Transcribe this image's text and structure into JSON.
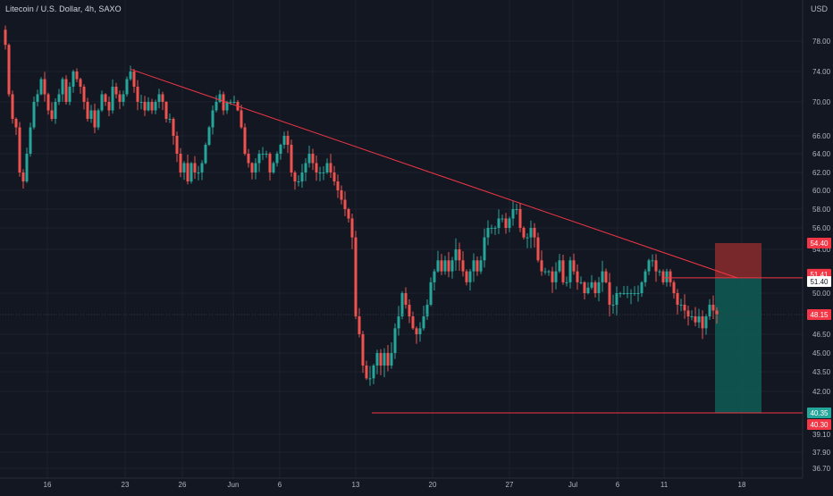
{
  "header": {
    "symbol_title": "Litecoin / U.S. Dollar, 4h, SAXO",
    "currency_label": "USD"
  },
  "colors": {
    "background": "#131722",
    "grid": "#1e222d",
    "up_candle": "#26a69a",
    "down_candle": "#ef5350",
    "trendline": "#f23645",
    "target_zone": "#0f5c55",
    "stop_zone": "#8b2a2c",
    "axis_text": "#b2b5be"
  },
  "chart_data": {
    "type": "candlestick",
    "ylim": [
      36.0,
      81.5
    ],
    "y_ticks": [
      "78.00",
      "74.00",
      "70.00",
      "66.00",
      "64.00",
      "62.00",
      "60.00",
      "58.00",
      "56.00",
      "54.00",
      "50.00",
      "46.50",
      "45.00",
      "43.50",
      "42.00",
      "39.10",
      "37.90",
      "36.70"
    ],
    "x_ticks": [
      "16",
      "23",
      "26",
      "Jun",
      "6",
      "13",
      "20",
      "27",
      "Jul",
      "6",
      "11",
      "18"
    ],
    "price_labels": [
      {
        "text": "54.40",
        "value": 54.4,
        "bg": "#f23645",
        "fg": "#ffffff"
      },
      {
        "text": "51.41",
        "value": 51.41,
        "bg": "#f23645",
        "fg": "#ffffff"
      },
      {
        "text": "51.40",
        "value": 51.4,
        "bg": "#ffffff",
        "fg": "#131722"
      },
      {
        "text": "48.15",
        "value": 48.15,
        "bg": "#f23645",
        "fg": "#ffffff"
      },
      {
        "text": "40.35",
        "value": 40.35,
        "bg": "#26a69a",
        "fg": "#ffffff"
      },
      {
        "text": "40.30",
        "value": 40.3,
        "bg": "#f23645",
        "fg": "#ffffff"
      }
    ],
    "current_price": 48.15,
    "trendline": {
      "from": {
        "x_tick": "23",
        "price": 74.3
      },
      "to": {
        "x_tick": "18",
        "price": 51.4
      }
    },
    "short_position": {
      "entry": 51.4,
      "stop": 54.4,
      "target": 40.35
    },
    "support_line": 40.35,
    "resistance_line": 51.41,
    "price_path": [
      [
        0,
        79.5
      ],
      [
        4,
        77.5
      ],
      [
        8,
        71
      ],
      [
        12,
        68
      ],
      [
        16,
        67
      ],
      [
        20,
        62
      ],
      [
        24,
        61
      ],
      [
        28,
        64
      ],
      [
        32,
        67
      ],
      [
        36,
        70
      ],
      [
        40,
        71
      ],
      [
        44,
        73
      ],
      [
        48,
        71
      ],
      [
        52,
        69
      ],
      [
        56,
        68
      ],
      [
        60,
        70
      ],
      [
        64,
        71
      ],
      [
        68,
        73
      ],
      [
        72,
        70
      ],
      [
        76,
        72
      ],
      [
        80,
        74
      ],
      [
        84,
        73
      ],
      [
        88,
        72
      ],
      [
        92,
        70
      ],
      [
        96,
        68
      ],
      [
        100,
        69
      ],
      [
        104,
        67
      ],
      [
        108,
        69
      ],
      [
        112,
        71
      ],
      [
        116,
        70
      ],
      [
        120,
        69
      ],
      [
        124,
        72
      ],
      [
        128,
        71
      ],
      [
        132,
        70
      ],
      [
        136,
        71
      ],
      [
        140,
        73
      ],
      [
        144,
        74
      ],
      [
        148,
        72
      ],
      [
        152,
        70
      ],
      [
        156,
        70
      ],
      [
        160,
        69
      ],
      [
        164,
        70
      ],
      [
        168,
        69
      ],
      [
        172,
        70
      ],
      [
        176,
        71
      ],
      [
        180,
        70
      ],
      [
        184,
        68
      ],
      [
        188,
        68
      ],
      [
        192,
        66
      ],
      [
        196,
        64
      ],
      [
        200,
        62
      ],
      [
        204,
        63
      ],
      [
        208,
        61
      ],
      [
        212,
        63
      ],
      [
        216,
        62
      ],
      [
        220,
        62
      ],
      [
        224,
        63
      ],
      [
        228,
        65
      ],
      [
        232,
        67
      ],
      [
        236,
        69
      ],
      [
        240,
        70
      ],
      [
        244,
        71
      ],
      [
        248,
        69
      ],
      [
        252,
        70
      ],
      [
        256,
        70
      ],
      [
        260,
        70
      ],
      [
        264,
        69
      ],
      [
        268,
        67
      ],
      [
        272,
        64
      ],
      [
        276,
        63
      ],
      [
        280,
        62
      ],
      [
        284,
        63
      ],
      [
        288,
        64
      ],
      [
        292,
        64
      ],
      [
        296,
        64
      ],
      [
        300,
        62
      ],
      [
        304,
        63
      ],
      [
        308,
        64
      ],
      [
        312,
        65
      ],
      [
        316,
        66
      ],
      [
        320,
        65
      ],
      [
        324,
        62
      ],
      [
        328,
        61
      ],
      [
        332,
        61
      ],
      [
        336,
        62
      ],
      [
        340,
        63
      ],
      [
        344,
        64
      ],
      [
        348,
        63
      ],
      [
        352,
        62
      ],
      [
        356,
        62
      ],
      [
        360,
        62
      ],
      [
        364,
        63
      ],
      [
        368,
        62
      ],
      [
        372,
        61
      ],
      [
        376,
        60
      ],
      [
        380,
        59
      ],
      [
        384,
        58
      ],
      [
        388,
        57
      ],
      [
        392,
        55
      ],
      [
        396,
        48
      ],
      [
        400,
        46.5
      ],
      [
        404,
        44
      ],
      [
        408,
        43
      ],
      [
        412,
        43
      ],
      [
        416,
        44
      ],
      [
        420,
        45
      ],
      [
        424,
        44
      ],
      [
        428,
        45
      ],
      [
        432,
        44
      ],
      [
        436,
        45
      ],
      [
        440,
        47
      ],
      [
        444,
        48
      ],
      [
        448,
        50
      ],
      [
        452,
        49
      ],
      [
        456,
        48
      ],
      [
        460,
        47
      ],
      [
        464,
        46.5
      ],
      [
        468,
        47
      ],
      [
        472,
        48
      ],
      [
        476,
        49
      ],
      [
        480,
        51
      ],
      [
        484,
        52
      ],
      [
        488,
        53
      ],
      [
        492,
        52
      ],
      [
        496,
        53
      ],
      [
        500,
        52
      ],
      [
        504,
        53
      ],
      [
        508,
        54
      ],
      [
        512,
        53
      ],
      [
        516,
        52
      ],
      [
        520,
        51
      ],
      [
        524,
        52
      ],
      [
        528,
        53
      ],
      [
        532,
        52
      ],
      [
        536,
        53
      ],
      [
        540,
        55
      ],
      [
        544,
        56
      ],
      [
        548,
        56
      ],
      [
        552,
        56
      ],
      [
        556,
        57
      ],
      [
        560,
        57
      ],
      [
        564,
        56
      ],
      [
        568,
        57
      ],
      [
        572,
        58
      ],
      [
        576,
        58
      ],
      [
        580,
        56
      ],
      [
        584,
        55
      ],
      [
        588,
        55
      ],
      [
        592,
        56
      ],
      [
        596,
        55
      ],
      [
        600,
        53
      ],
      [
        604,
        52
      ],
      [
        608,
        52
      ],
      [
        612,
        52
      ],
      [
        616,
        51
      ],
      [
        620,
        52
      ],
      [
        624,
        53
      ],
      [
        628,
        51
      ],
      [
        632,
        51
      ],
      [
        636,
        53
      ],
      [
        640,
        52
      ],
      [
        644,
        51
      ],
      [
        648,
        51
      ],
      [
        652,
        50
      ],
      [
        656,
        50.5
      ],
      [
        660,
        51
      ],
      [
        664,
        50
      ],
      [
        668,
        51
      ],
      [
        672,
        52
      ],
      [
        676,
        51
      ],
      [
        680,
        49
      ],
      [
        684,
        49
      ],
      [
        688,
        50
      ],
      [
        692,
        50
      ],
      [
        696,
        50
      ],
      [
        700,
        50
      ],
      [
        704,
        50
      ],
      [
        708,
        50
      ],
      [
        712,
        50
      ],
      [
        716,
        51
      ],
      [
        720,
        52
      ],
      [
        724,
        53
      ],
      [
        728,
        53
      ],
      [
        732,
        52
      ],
      [
        736,
        52
      ],
      [
        740,
        51
      ],
      [
        744,
        52
      ],
      [
        748,
        51
      ],
      [
        752,
        50
      ],
      [
        756,
        49
      ],
      [
        760,
        49
      ],
      [
        764,
        48.5
      ],
      [
        768,
        48
      ],
      [
        772,
        48
      ],
      [
        776,
        47.5
      ],
      [
        780,
        48
      ],
      [
        784,
        47
      ],
      [
        788,
        48
      ],
      [
        792,
        49
      ],
      [
        796,
        48.5
      ],
      [
        800,
        48.15
      ]
    ]
  }
}
